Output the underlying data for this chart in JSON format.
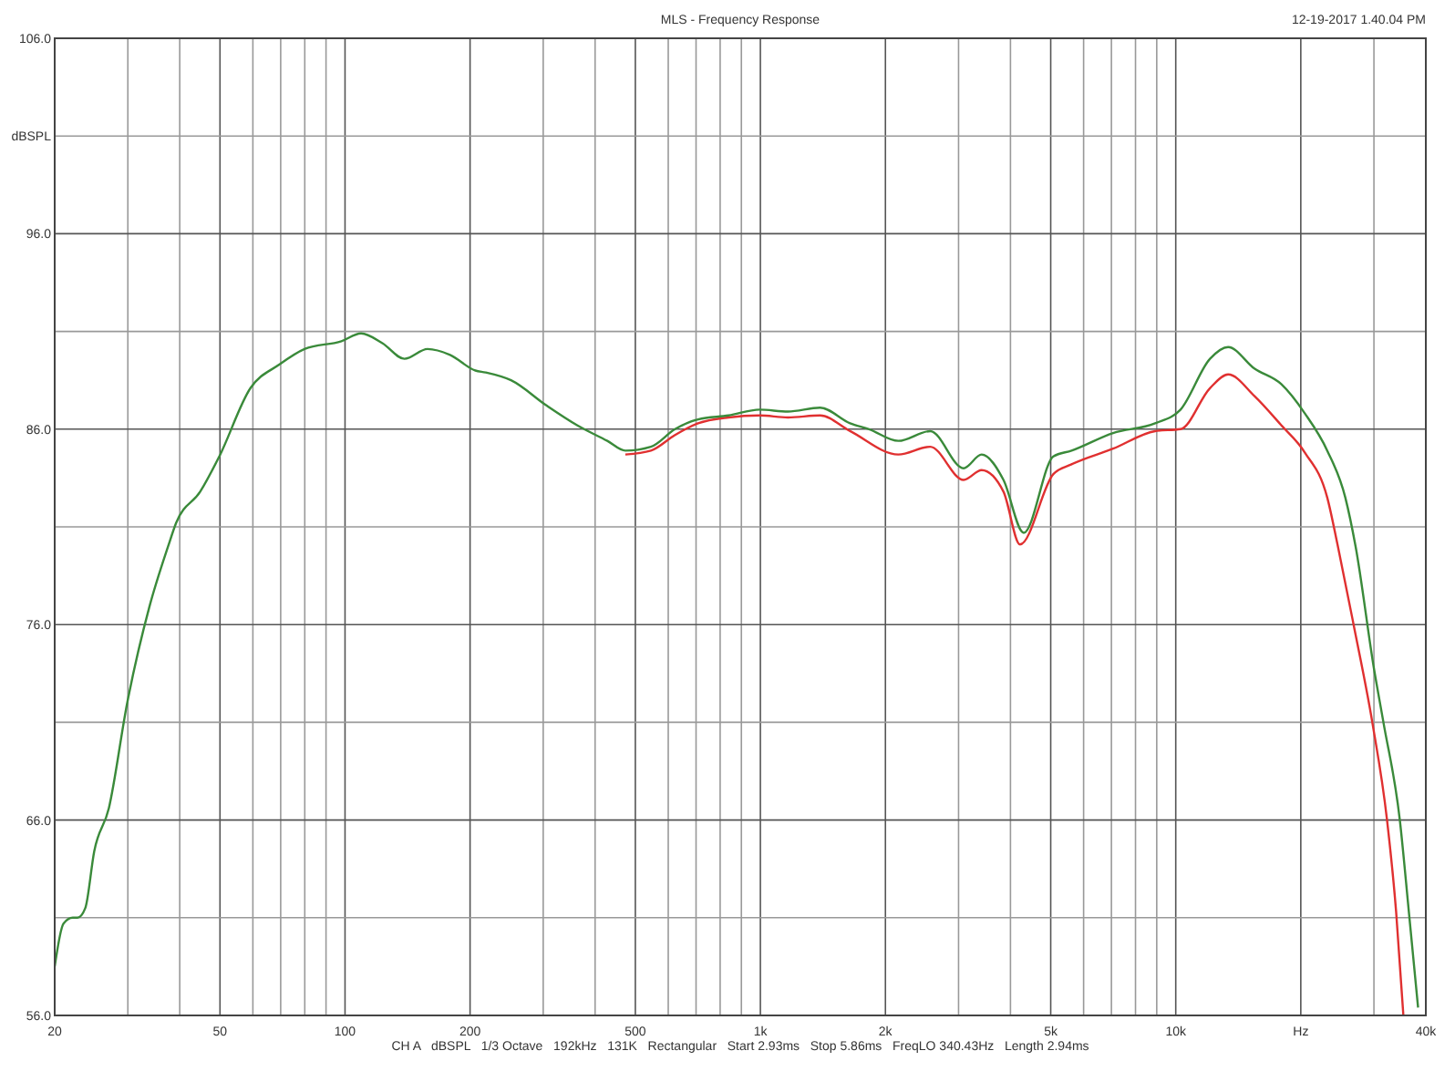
{
  "chart_data": {
    "type": "line",
    "title": "MLS - Frequency Response",
    "ylabel": "dBSPL",
    "annotations": [
      "12-19-2017 1.40.04 PM",
      "CH A   dBSPL   1/3 Octave   192kHz   131K   Rectangular   Start 2.93ms   Stop 5.86ms   FreqLO 340.43Hz   Length 2.94ms"
    ],
    "log": "x",
    "grid": true,
    "marker": "none",
    "line_style": "solid",
    "xlim": [
      20,
      40000
    ],
    "ylim": [
      56,
      106
    ],
    "xticks": [
      20,
      {
        "value": 30,
        "label": null
      },
      {
        "value": 40,
        "label": null
      },
      50,
      {
        "value": 60,
        "label": null
      },
      {
        "value": 70,
        "label": null
      },
      {
        "value": 80,
        "label": null
      },
      {
        "value": 90,
        "label": null
      },
      100,
      200,
      {
        "value": 300,
        "label": null
      },
      {
        "value": 400,
        "label": null
      },
      500,
      {
        "value": 600,
        "label": null
      },
      {
        "value": 700,
        "label": null
      },
      {
        "value": 800,
        "label": null
      },
      {
        "value": 900,
        "label": null
      },
      {
        "value": 1000,
        "label": "1k"
      },
      {
        "value": 2000,
        "label": "2k"
      },
      {
        "value": 3000,
        "label": null
      },
      {
        "value": 4000,
        "label": null
      },
      {
        "value": 5000,
        "label": "5k"
      },
      {
        "value": 6000,
        "label": null
      },
      {
        "value": 7000,
        "label": null
      },
      {
        "value": 8000,
        "label": null
      },
      {
        "value": 9000,
        "label": null
      },
      {
        "value": 10000,
        "label": "10k"
      },
      {
        "value": 20000,
        "label": "Hz"
      },
      {
        "value": 30000,
        "label": null
      },
      {
        "value": 40000,
        "label": "40k"
      }
    ],
    "yticks": [
      {
        "value": 56,
        "label": "56.0"
      },
      {
        "value": 61,
        "label": null
      },
      {
        "value": 66,
        "label": "66.0"
      },
      {
        "value": 71,
        "label": null
      },
      {
        "value": 76,
        "label": "76.0"
      },
      {
        "value": 81,
        "label": null
      },
      {
        "value": 86,
        "label": "86.0"
      },
      {
        "value": 91,
        "label": null
      },
      {
        "value": 96,
        "label": "96.0"
      },
      {
        "value": 101,
        "label": null
      },
      {
        "value": 106,
        "label": "106.0"
      }
    ],
    "series": [
      {
        "color": "#e03030",
        "x": [
          473,
          545,
          623,
          708,
          838,
          996,
          1165,
          1392,
          1644,
          2149,
          2563,
          3085,
          3409,
          3848,
          4218,
          5073,
          5612,
          7065,
          8918,
          10270,
          12090,
          13370,
          15460,
          17950,
          20460,
          23160,
          24570,
          26800,
          29730,
          32260,
          33930,
          35320
        ],
        "values": [
          84.7,
          84.9,
          85.7,
          86.3,
          86.6,
          86.7,
          86.6,
          86.7,
          85.9,
          84.7,
          85.1,
          83.4,
          83.9,
          82.8,
          80.1,
          83.7,
          84.2,
          85,
          85.9,
          86,
          88.1,
          88.8,
          87.7,
          86.2,
          84.8,
          82.5,
          80,
          76,
          71,
          66,
          61.3,
          56
        ]
      },
      {
        "color": "#3a8a3a",
        "x": [
          20,
          21,
          22.1,
          22.7,
          23.7,
          24.9,
          27,
          29.9,
          33.8,
          37.5,
          39.2,
          44.8,
          49.8,
          59.2,
          69.4,
          79.9,
          98,
          109.3,
          123,
          139,
          158,
          179,
          206,
          218,
          251,
          306,
          362,
          428,
          473,
          545,
          623,
          708,
          838,
          996,
          1165,
          1392,
          1644,
          1826,
          2149,
          2563,
          3085,
          3409,
          3848,
          4306,
          5073,
          5612,
          7065,
          8918,
          10270,
          12090,
          13370,
          15460,
          17950,
          20460,
          23160,
          25600,
          27100,
          30030,
          31620,
          34630,
          36410,
          38320
        ],
        "values": [
          58.5,
          60.7,
          61,
          61,
          61.5,
          64.4,
          66.6,
          72,
          76.9,
          80,
          81.2,
          82.8,
          84.6,
          88.1,
          89.3,
          90.1,
          90.5,
          90.9,
          90.4,
          89.6,
          90.1,
          89.8,
          89,
          88.9,
          88.5,
          87.2,
          86.2,
          85.4,
          84.9,
          85.1,
          86,
          86.5,
          86.7,
          87,
          86.9,
          87.1,
          86.3,
          86,
          85.4,
          85.9,
          84,
          84.7,
          83.4,
          80.7,
          84.6,
          84.9,
          85.8,
          86.3,
          87,
          89.6,
          90.2,
          89.1,
          88.3,
          86.8,
          84.9,
          82.5,
          80,
          73.7,
          71,
          66,
          61.3,
          56.4
        ]
      }
    ]
  }
}
